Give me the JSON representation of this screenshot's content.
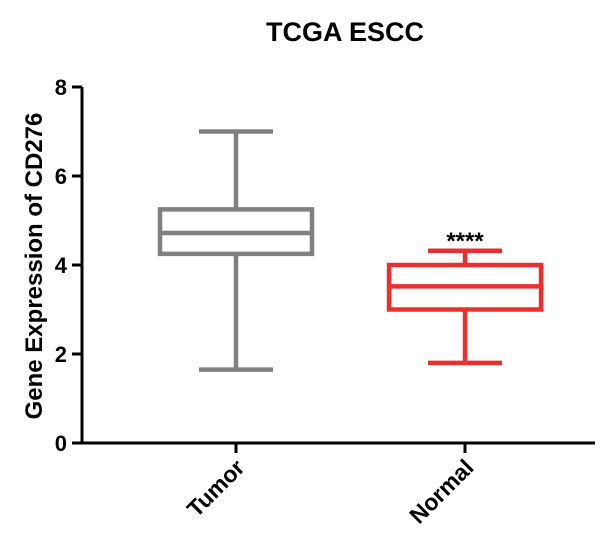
{
  "chart_data": {
    "type": "box",
    "title": "TCGA ESCC",
    "xlabel": "",
    "ylabel": "Gene Expression of CD276",
    "ylim": [
      0,
      8
    ],
    "yticks": [
      0,
      2,
      4,
      6,
      8
    ],
    "grid": false,
    "categories": [
      "Tumor",
      "Normal"
    ],
    "boxes": [
      {
        "category": "Tumor",
        "min": 1.65,
        "q1": 4.25,
        "median": 4.72,
        "q3": 5.25,
        "max": 7.0,
        "color": "#808080"
      },
      {
        "category": "Normal",
        "min": 1.8,
        "q1": 3.0,
        "median": 3.52,
        "q3": 4.0,
        "max": 4.32,
        "color": "#e8312c",
        "annotation": "****"
      }
    ]
  }
}
